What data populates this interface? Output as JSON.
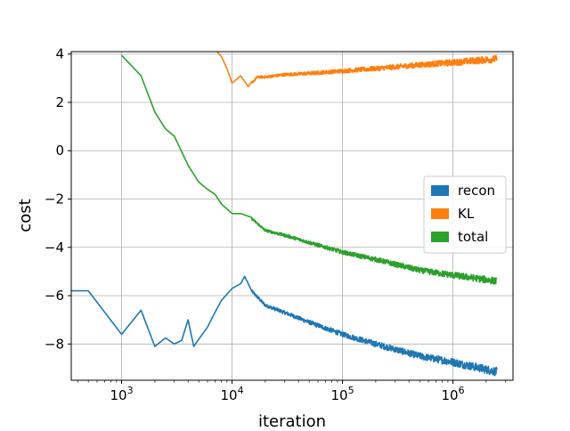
{
  "chart_data": {
    "type": "line",
    "title": "",
    "xlabel": "iteration",
    "ylabel": "cost",
    "xscale": "log",
    "xlim": [
      350,
      3500000
    ],
    "ylim": [
      -9.5,
      4.1
    ],
    "grid": true,
    "legend_position": "right",
    "x_ticks": [
      {
        "value": 1000,
        "base": "10",
        "exp": "3"
      },
      {
        "value": 10000,
        "base": "10",
        "exp": "4"
      },
      {
        "value": 100000,
        "base": "10",
        "exp": "5"
      },
      {
        "value": 1000000,
        "base": "10",
        "exp": "6"
      }
    ],
    "y_ticks": [
      {
        "value": 4,
        "label": "4"
      },
      {
        "value": 2,
        "label": "2"
      },
      {
        "value": 0,
        "label": "0"
      },
      {
        "value": -2,
        "label": "−2"
      },
      {
        "value": -4,
        "label": "−4"
      },
      {
        "value": -6,
        "label": "−6"
      },
      {
        "value": -8,
        "label": "−8"
      }
    ],
    "series": [
      {
        "name": "recon",
        "color": "#1f77b4",
        "noise": 0.12,
        "points": [
          [
            350,
            -5.8
          ],
          [
            500,
            -5.8
          ],
          [
            1000,
            -7.6
          ],
          [
            1500,
            -6.6
          ],
          [
            2000,
            -8.1
          ],
          [
            2500,
            -7.75
          ],
          [
            3000,
            -8.0
          ],
          [
            3500,
            -7.85
          ],
          [
            4000,
            -7.0
          ],
          [
            4500,
            -8.1
          ],
          [
            5000,
            -7.8
          ],
          [
            6000,
            -7.3
          ],
          [
            7000,
            -6.7
          ],
          [
            8000,
            -6.2
          ],
          [
            10000,
            -5.7
          ],
          [
            12000,
            -5.5
          ],
          [
            13000,
            -5.2
          ],
          [
            15000,
            -5.8
          ],
          [
            20000,
            -6.4
          ],
          [
            30000,
            -6.7
          ],
          [
            50000,
            -7.1
          ],
          [
            100000,
            -7.6
          ],
          [
            200000,
            -8.0
          ],
          [
            500000,
            -8.5
          ],
          [
            1000000,
            -8.75
          ],
          [
            2500000,
            -9.15
          ]
        ]
      },
      {
        "name": "KL",
        "color": "#ff7f0e",
        "noise": 0.1,
        "points": [
          [
            7000,
            4.2
          ],
          [
            8000,
            3.9
          ],
          [
            9000,
            3.4
          ],
          [
            10000,
            2.8
          ],
          [
            12000,
            3.1
          ],
          [
            14000,
            2.65
          ],
          [
            17000,
            3.05
          ],
          [
            20000,
            3.05
          ],
          [
            30000,
            3.15
          ],
          [
            50000,
            3.2
          ],
          [
            100000,
            3.3
          ],
          [
            200000,
            3.4
          ],
          [
            500000,
            3.55
          ],
          [
            1000000,
            3.65
          ],
          [
            2500000,
            3.8
          ]
        ]
      },
      {
        "name": "total",
        "color": "#2ca02c",
        "noise": 0.1,
        "points": [
          [
            1000,
            3.95
          ],
          [
            1500,
            3.1
          ],
          [
            2000,
            1.6
          ],
          [
            2500,
            0.9
          ],
          [
            3000,
            0.6
          ],
          [
            4000,
            -0.6
          ],
          [
            5000,
            -1.3
          ],
          [
            6000,
            -1.6
          ],
          [
            7000,
            -1.8
          ],
          [
            8000,
            -2.2
          ],
          [
            10000,
            -2.6
          ],
          [
            12000,
            -2.6
          ],
          [
            15000,
            -2.8
          ],
          [
            20000,
            -3.3
          ],
          [
            30000,
            -3.5
          ],
          [
            50000,
            -3.8
          ],
          [
            100000,
            -4.2
          ],
          [
            200000,
            -4.5
          ],
          [
            500000,
            -4.95
          ],
          [
            1000000,
            -5.15
          ],
          [
            2500000,
            -5.4
          ]
        ]
      }
    ]
  }
}
